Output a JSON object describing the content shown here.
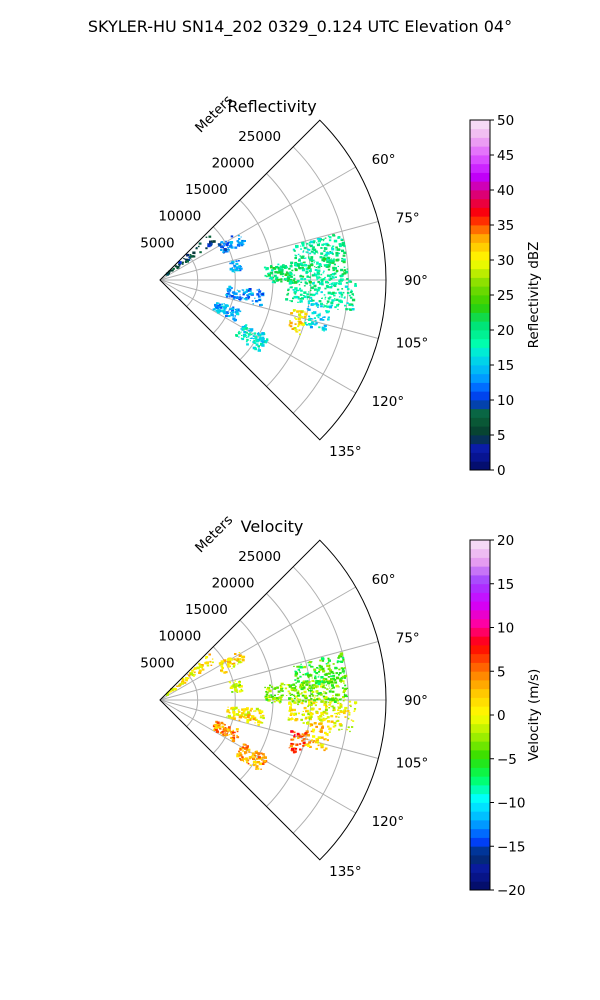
{
  "figure": {
    "title": "SKYLER-HU  SN14_202  0329_0.124 UTC Elevation 04°"
  },
  "chart_data": [
    {
      "type": "heatmap",
      "subtype": "polar sector (radar PPI)",
      "title": "Reflectivity",
      "radial_axis_label": "Meters",
      "radial_range": [
        0,
        30000
      ],
      "radial_ticks": [
        5000,
        10000,
        15000,
        20000,
        25000
      ],
      "radial_tick_labels": [
        "5000",
        "10000",
        "15000",
        "20000",
        "25000"
      ],
      "angle_range_deg": [
        45,
        135
      ],
      "angle_ticks_deg": [
        60,
        75,
        90,
        105,
        120,
        135
      ],
      "angle_tick_labels": [
        "60°",
        "75°",
        "90°",
        "105°",
        "120°",
        "135°"
      ],
      "grid": true,
      "colorbar": {
        "label": "Reflectivity dBZ",
        "range": [
          0,
          50
        ],
        "ticks": [
          0,
          5,
          10,
          15,
          20,
          25,
          30,
          35,
          40,
          45,
          50
        ],
        "tick_labels": [
          "0",
          "5",
          "10",
          "15",
          "20",
          "25",
          "30",
          "35",
          "40",
          "45",
          "50"
        ]
      },
      "echo_regions": [
        {
          "az": 52,
          "r0": 1000,
          "r1": 9000,
          "value": 7,
          "density": 0.18
        },
        {
          "az": 63,
          "r0": 9000,
          "r1": 12500,
          "value": 12,
          "density": 0.35
        },
        {
          "az": 80,
          "r0": 9500,
          "r1": 11000,
          "value": 13,
          "density": 0.4
        },
        {
          "az": 80,
          "r0": 18000,
          "r1": 25000,
          "value": 19,
          "density": 0.55
        },
        {
          "az": 87,
          "r0": 14000,
          "r1": 25000,
          "value": 20,
          "density": 0.6
        },
        {
          "az": 95,
          "r0": 17000,
          "r1": 26000,
          "value": 19,
          "density": 0.5
        },
        {
          "az": 100,
          "r0": 9000,
          "r1": 14000,
          "value": 13,
          "density": 0.4
        },
        {
          "az": 103,
          "r0": 20000,
          "r1": 23000,
          "value": 16,
          "density": 0.45
        },
        {
          "az": 115,
          "r0": 8000,
          "r1": 11500,
          "value": 14,
          "density": 0.5
        },
        {
          "az": 122,
          "r0": 12500,
          "r1": 16500,
          "value": 17,
          "density": 0.55
        },
        {
          "az": 107,
          "r0": 18000,
          "r1": 20000,
          "value": 31,
          "density": 0.5
        }
      ]
    },
    {
      "type": "heatmap",
      "subtype": "polar sector (radar PPI)",
      "title": "Velocity",
      "radial_axis_label": "Meters",
      "radial_range": [
        0,
        30000
      ],
      "radial_ticks": [
        5000,
        10000,
        15000,
        20000,
        25000
      ],
      "radial_tick_labels": [
        "5000",
        "10000",
        "15000",
        "20000",
        "25000"
      ],
      "angle_range_deg": [
        45,
        135
      ],
      "angle_ticks_deg": [
        60,
        75,
        90,
        105,
        120,
        135
      ],
      "angle_tick_labels": [
        "60°",
        "75°",
        "90°",
        "105°",
        "120°",
        "135°"
      ],
      "grid": true,
      "colorbar": {
        "label": "Velocity (m/s)",
        "range": [
          -20,
          20
        ],
        "ticks": [
          -20,
          -15,
          -10,
          -5,
          0,
          5,
          10,
          15,
          20
        ],
        "tick_labels": [
          "−20",
          "−15",
          "−10",
          "−5",
          "0",
          "5",
          "10",
          "15",
          "20"
        ]
      },
      "echo_regions": [
        {
          "az": 52,
          "r0": 1000,
          "r1": 9000,
          "value": 1,
          "density": 0.18
        },
        {
          "az": 63,
          "r0": 9000,
          "r1": 12500,
          "value": 1,
          "density": 0.35
        },
        {
          "az": 80,
          "r0": 9500,
          "r1": 11000,
          "value": -1,
          "density": 0.4
        },
        {
          "az": 80,
          "r0": 18000,
          "r1": 25000,
          "value": -5,
          "density": 0.55
        },
        {
          "az": 87,
          "r0": 14000,
          "r1": 25000,
          "value": -3,
          "density": 0.6
        },
        {
          "az": 95,
          "r0": 17000,
          "r1": 26000,
          "value": 0,
          "density": 0.5
        },
        {
          "az": 100,
          "r0": 9000,
          "r1": 14000,
          "value": 1,
          "density": 0.4
        },
        {
          "az": 103,
          "r0": 20000,
          "r1": 23000,
          "value": 2,
          "density": 0.45
        },
        {
          "az": 115,
          "r0": 8000,
          "r1": 11500,
          "value": 4,
          "density": 0.5
        },
        {
          "az": 122,
          "r0": 12500,
          "r1": 16500,
          "value": 4,
          "density": 0.55
        },
        {
          "az": 107,
          "r0": 18000,
          "r1": 20000,
          "value": 6,
          "density": 0.5
        }
      ]
    }
  ]
}
